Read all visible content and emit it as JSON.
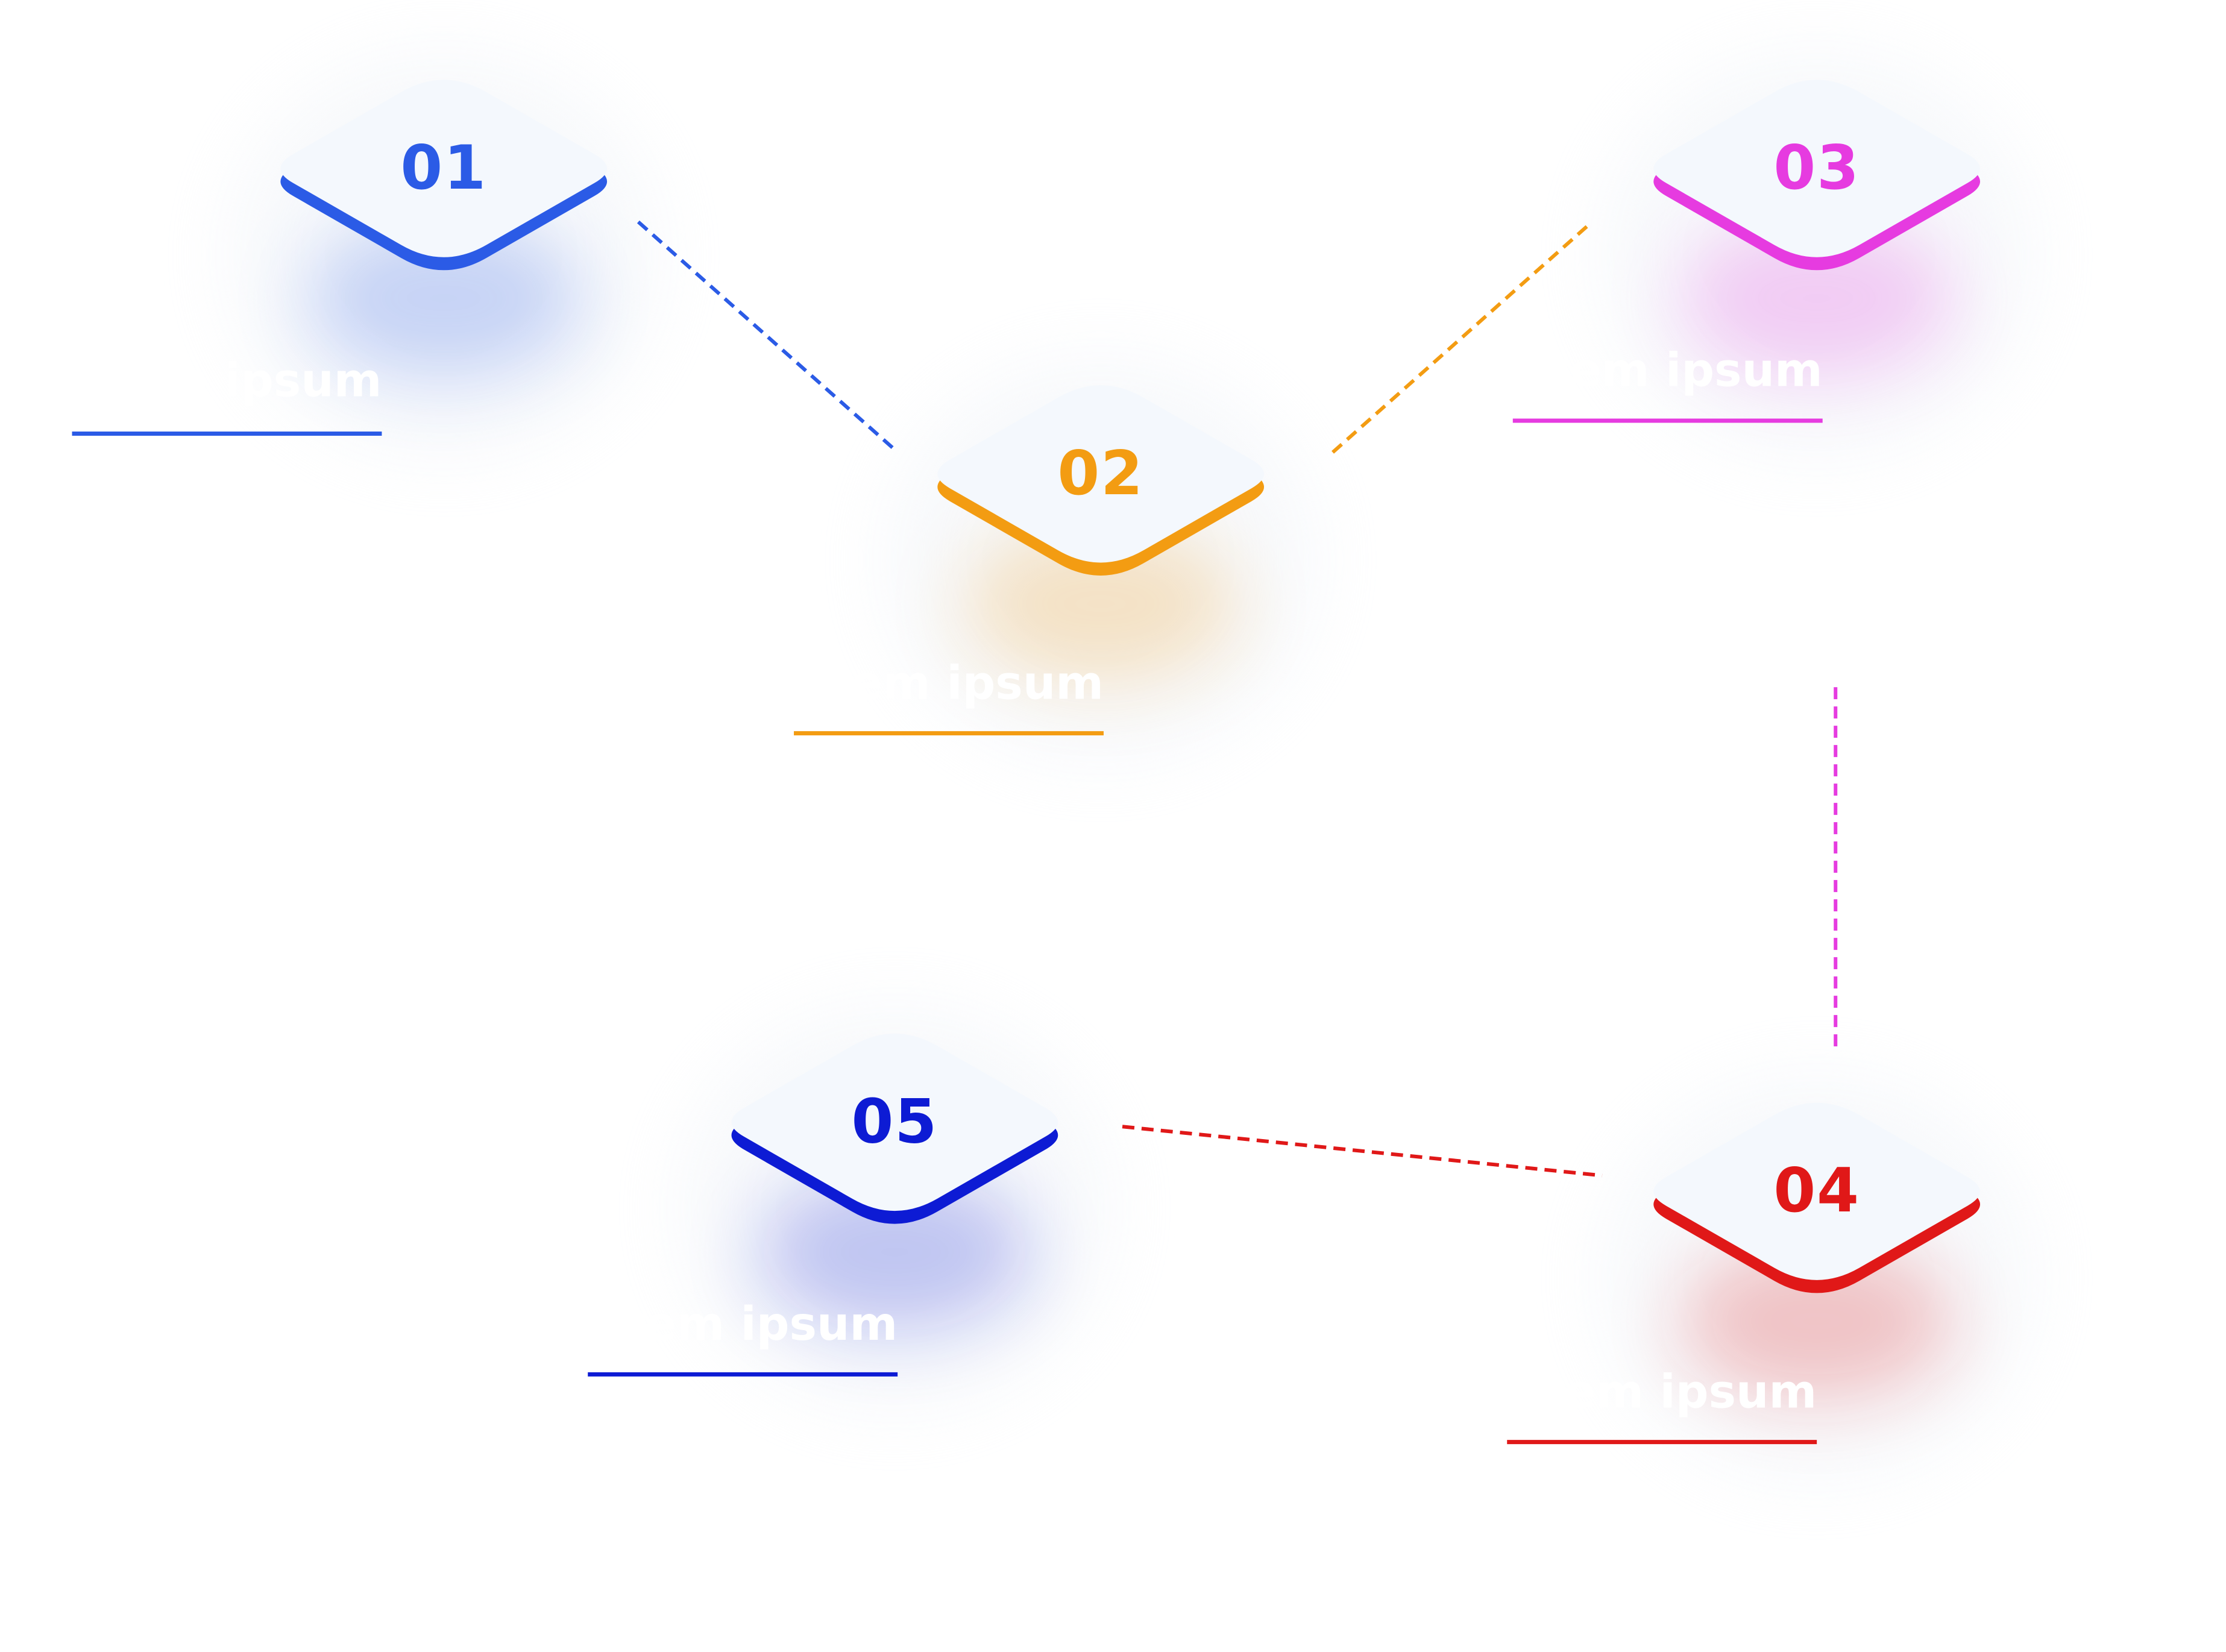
{
  "nodes": [
    {
      "id": "01",
      "number": "01",
      "caption": "Lorem ipsum",
      "color": "#2b5be6"
    },
    {
      "id": "02",
      "number": "02",
      "caption": "Lorem ipsum",
      "color": "#f39c12"
    },
    {
      "id": "03",
      "number": "03",
      "caption": "Lorem ipsum",
      "color": "#e63be0"
    },
    {
      "id": "04",
      "number": "04",
      "caption": "Lorem ipsum",
      "color": "#e01818"
    },
    {
      "id": "05",
      "number": "05",
      "caption": "Lorem ipsum",
      "color": "#0d1bd4"
    }
  ],
  "connectors": [
    {
      "from": "01",
      "to": "02",
      "color": "#2b5be6",
      "style": "dashed"
    },
    {
      "from": "02",
      "to": "03",
      "color": "#f39c12",
      "style": "dashed"
    },
    {
      "from": "03",
      "to": "04",
      "color": "#e63be0",
      "style": "dashed"
    },
    {
      "from": "05",
      "to": "04",
      "color": "#e01818",
      "style": "dashed"
    }
  ],
  "tile_face_color": "#f4f8fd",
  "caption_text_color": "#ffffff"
}
